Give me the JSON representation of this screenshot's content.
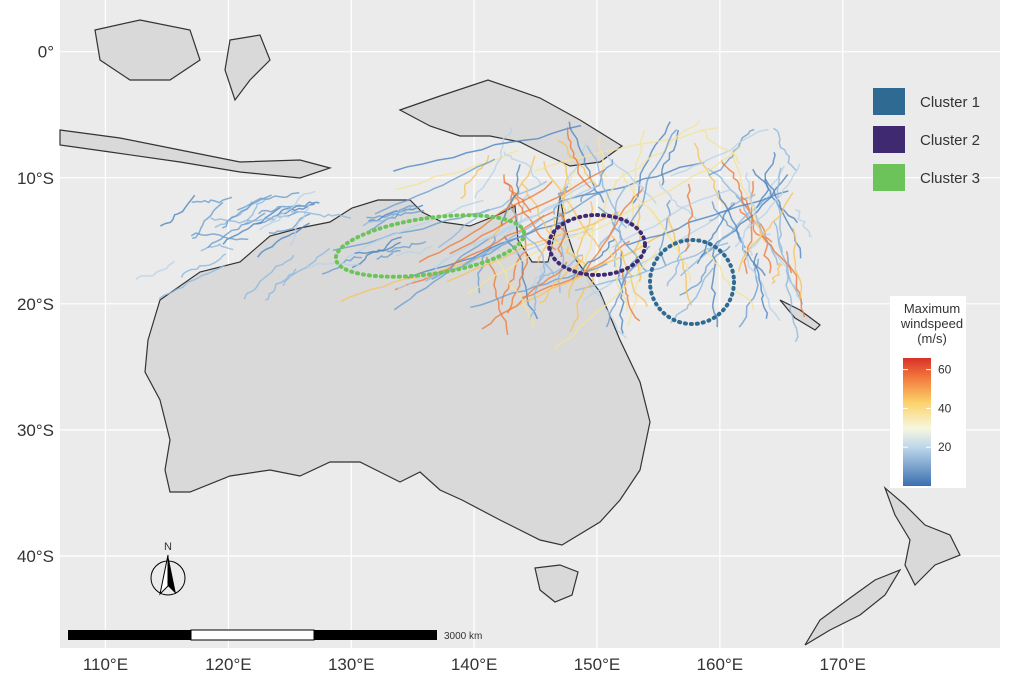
{
  "map": {
    "xlim": [
      106.3,
      182.8
    ],
    "ylim": [
      -47.3,
      4.1
    ],
    "xticks": [
      {
        "value": 110,
        "label": "110°E"
      },
      {
        "value": 120,
        "label": "120°E"
      },
      {
        "value": 130,
        "label": "130°E"
      },
      {
        "value": 140,
        "label": "140°E"
      },
      {
        "value": 150,
        "label": "150°E"
      },
      {
        "value": 160,
        "label": "160°E"
      },
      {
        "value": 170,
        "label": "170°E"
      }
    ],
    "yticks": [
      {
        "value": 0,
        "label": "0°"
      },
      {
        "value": -10,
        "label": "10°S"
      },
      {
        "value": -20,
        "label": "20°S"
      },
      {
        "value": -30,
        "label": "30°S"
      },
      {
        "value": -40,
        "label": "40°S"
      }
    ],
    "legend": [
      {
        "name": "Cluster 1",
        "color": "#2e6a92"
      },
      {
        "name": "Cluster 2",
        "color": "#3f2a72"
      },
      {
        "name": "Cluster 3",
        "color": "#6cc35a"
      }
    ],
    "colorbar": {
      "title": [
        "Maximum",
        "windspeed",
        "(m/s)"
      ],
      "lim": [
        0,
        66
      ],
      "ticks": [
        20,
        40,
        60
      ]
    },
    "scale_bar": "3000 km",
    "north": "N"
  }
}
